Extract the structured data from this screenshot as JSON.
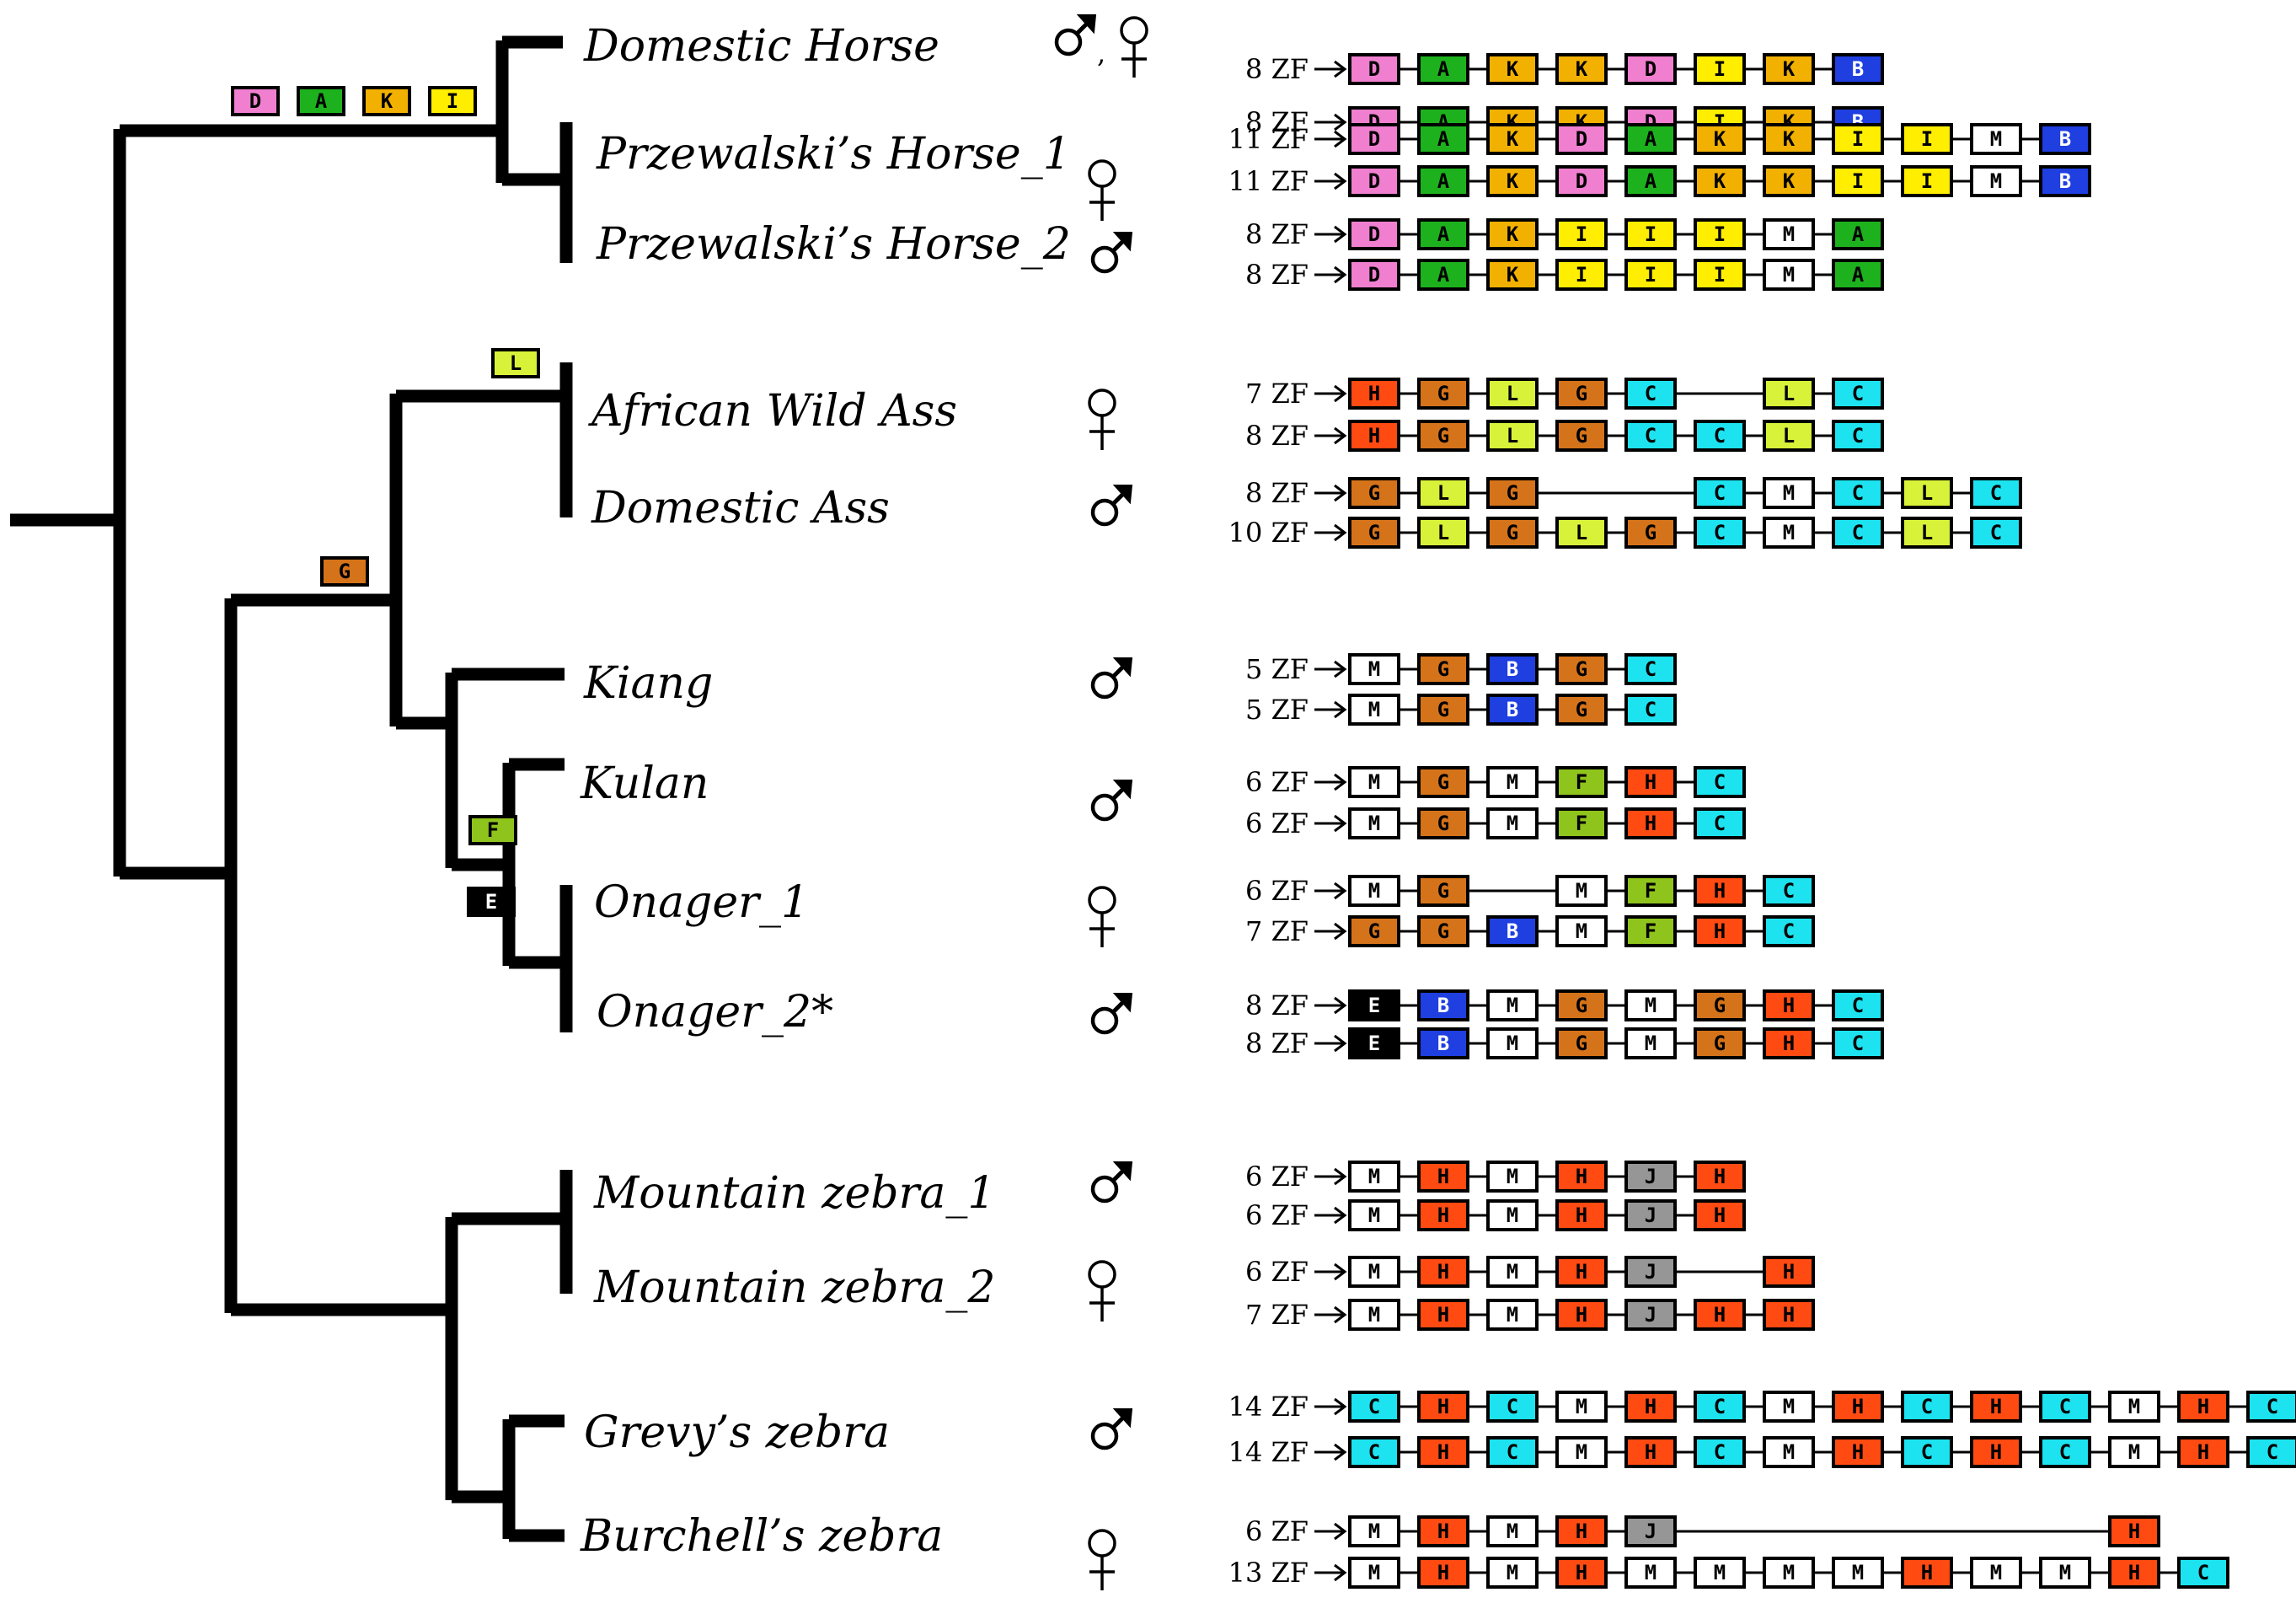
{
  "colors": {
    "A": "#1db21d",
    "B": "#1f3fe0",
    "C": "#1de3f0",
    "D": "#f07fd0",
    "E": "#000000",
    "F": "#8fc41c",
    "G": "#d5731a",
    "H": "#ff4a12",
    "I": "#ffee00",
    "J": "#969696",
    "K": "#f2b100",
    "L": "#d8f23a",
    "M": "#ffffff"
  },
  "symbols": {
    "male": "♂",
    "female": "♀",
    "both": "♂, ♀"
  },
  "branch_markers": [
    {
      "id": "horse-lineage",
      "motifs": [
        "D",
        "A",
        "K",
        "I"
      ]
    },
    {
      "id": "ass-lineage",
      "motifs": [
        "L"
      ]
    },
    {
      "id": "ass-kiang-lineage",
      "motifs": [
        "G"
      ]
    },
    {
      "id": "kulan-onager-lineage",
      "motifs": [
        "F"
      ]
    },
    {
      "id": "onager-lineage",
      "motifs": [
        "E"
      ]
    }
  ],
  "species": [
    {
      "name": "Domestic Horse",
      "sex": "both",
      "alleles": [
        {
          "count": "8 ZF",
          "cells": [
            "D",
            "A",
            "K",
            "K",
            "D",
            "I",
            "K",
            "B"
          ]
        },
        {
          "count": "8 ZF",
          "cells": [
            "D",
            "A",
            "K",
            "K",
            "D",
            "I",
            "K",
            "B"
          ]
        }
      ]
    },
    {
      "name": "Przewalski’s Horse_1",
      "sex": "female",
      "alleles": [
        {
          "count": "11 ZF",
          "cells": [
            "D",
            "A",
            "K",
            "D",
            "A",
            "K",
            "K",
            "I",
            "I",
            "M",
            "B"
          ]
        },
        {
          "count": "11 ZF",
          "cells": [
            "D",
            "A",
            "K",
            "D",
            "A",
            "K",
            "K",
            "I",
            "I",
            "M",
            "B"
          ]
        }
      ]
    },
    {
      "name": "Przewalski’s Horse_2",
      "sex": "male",
      "alleles": [
        {
          "count": "8 ZF",
          "cells": [
            "D",
            "A",
            "K",
            "I",
            "I",
            "I",
            "M",
            "A"
          ]
        },
        {
          "count": "8 ZF",
          "cells": [
            "D",
            "A",
            "K",
            "I",
            "I",
            "I",
            "M",
            "A"
          ]
        }
      ]
    },
    {
      "name": "African Wild Ass",
      "sex": "female",
      "alleles": [
        {
          "count": "7 ZF",
          "cells": [
            "H",
            "G",
            "L",
            "G",
            "C",
            null,
            "L",
            "C"
          ]
        },
        {
          "count": "8 ZF",
          "cells": [
            "H",
            "G",
            "L",
            "G",
            "C",
            "C",
            "L",
            "C"
          ]
        }
      ]
    },
    {
      "name": "Domestic Ass",
      "sex": "male",
      "alleles": [
        {
          "count": "8 ZF",
          "cells": [
            "G",
            "L",
            "G",
            null,
            null,
            "C",
            "M",
            "C",
            "L",
            "C"
          ]
        },
        {
          "count": "10 ZF",
          "cells": [
            "G",
            "L",
            "G",
            "L",
            "G",
            "C",
            "M",
            "C",
            "L",
            "C"
          ]
        }
      ]
    },
    {
      "name": "Kiang",
      "sex": "male",
      "alleles": [
        {
          "count": "5 ZF",
          "cells": [
            "M",
            "G",
            "B",
            "G",
            "C"
          ]
        },
        {
          "count": "5 ZF",
          "cells": [
            "M",
            "G",
            "B",
            "G",
            "C"
          ]
        }
      ]
    },
    {
      "name": "Kulan",
      "sex": "male",
      "alleles": [
        {
          "count": "6 ZF",
          "cells": [
            "M",
            "G",
            "M",
            "F",
            "H",
            "C"
          ]
        },
        {
          "count": "6 ZF",
          "cells": [
            "M",
            "G",
            "M",
            "F",
            "H",
            "C"
          ]
        }
      ]
    },
    {
      "name": "Onager_1",
      "sex": "female",
      "alleles": [
        {
          "count": "6 ZF",
          "cells": [
            "M",
            "G",
            null,
            "M",
            "F",
            "H",
            "C"
          ]
        },
        {
          "count": "7 ZF",
          "cells": [
            "G",
            "G",
            "B",
            "M",
            "F",
            "H",
            "C"
          ]
        }
      ]
    },
    {
      "name": "Onager_2*",
      "sex": "male",
      "alleles": [
        {
          "count": "8 ZF",
          "cells": [
            "E",
            "B",
            "M",
            "G",
            "M",
            "G",
            "H",
            "C"
          ]
        },
        {
          "count": "8 ZF",
          "cells": [
            "E",
            "B",
            "M",
            "G",
            "M",
            "G",
            "H",
            "C"
          ]
        }
      ]
    },
    {
      "name": "Mountain zebra_1",
      "sex": "male",
      "alleles": [
        {
          "count": "6 ZF",
          "cells": [
            "M",
            "H",
            "M",
            "H",
            "J",
            "H"
          ]
        },
        {
          "count": "6 ZF",
          "cells": [
            "M",
            "H",
            "M",
            "H",
            "J",
            "H"
          ]
        }
      ]
    },
    {
      "name": "Mountain zebra_2",
      "sex": "female",
      "alleles": [
        {
          "count": "6 ZF",
          "cells": [
            "M",
            "H",
            "M",
            "H",
            "J",
            null,
            "H"
          ]
        },
        {
          "count": "7 ZF",
          "cells": [
            "M",
            "H",
            "M",
            "H",
            "J",
            "H",
            "H"
          ]
        }
      ]
    },
    {
      "name": "Grevy’s zebra",
      "sex": "male",
      "alleles": [
        {
          "count": "14 ZF",
          "cells": [
            "C",
            "H",
            "C",
            "M",
            "H",
            "C",
            "M",
            "H",
            "C",
            "H",
            "C",
            "M",
            "H",
            "C"
          ]
        },
        {
          "count": "14 ZF",
          "cells": [
            "C",
            "H",
            "C",
            "M",
            "H",
            "C",
            "M",
            "H",
            "C",
            "H",
            "C",
            "M",
            "H",
            "C"
          ]
        }
      ]
    },
    {
      "name": "Burchell’s zebra",
      "sex": "female",
      "alleles": [
        {
          "count": "6 ZF",
          "cells": [
            "M",
            "H",
            "M",
            "H",
            "J",
            null,
            null,
            null,
            null,
            null,
            null,
            "H"
          ]
        },
        {
          "count": "13 ZF",
          "cells": [
            "M",
            "H",
            "M",
            "H",
            "M",
            "M",
            "M",
            "M",
            "H",
            "M",
            "M",
            "H",
            "C"
          ]
        }
      ]
    }
  ]
}
